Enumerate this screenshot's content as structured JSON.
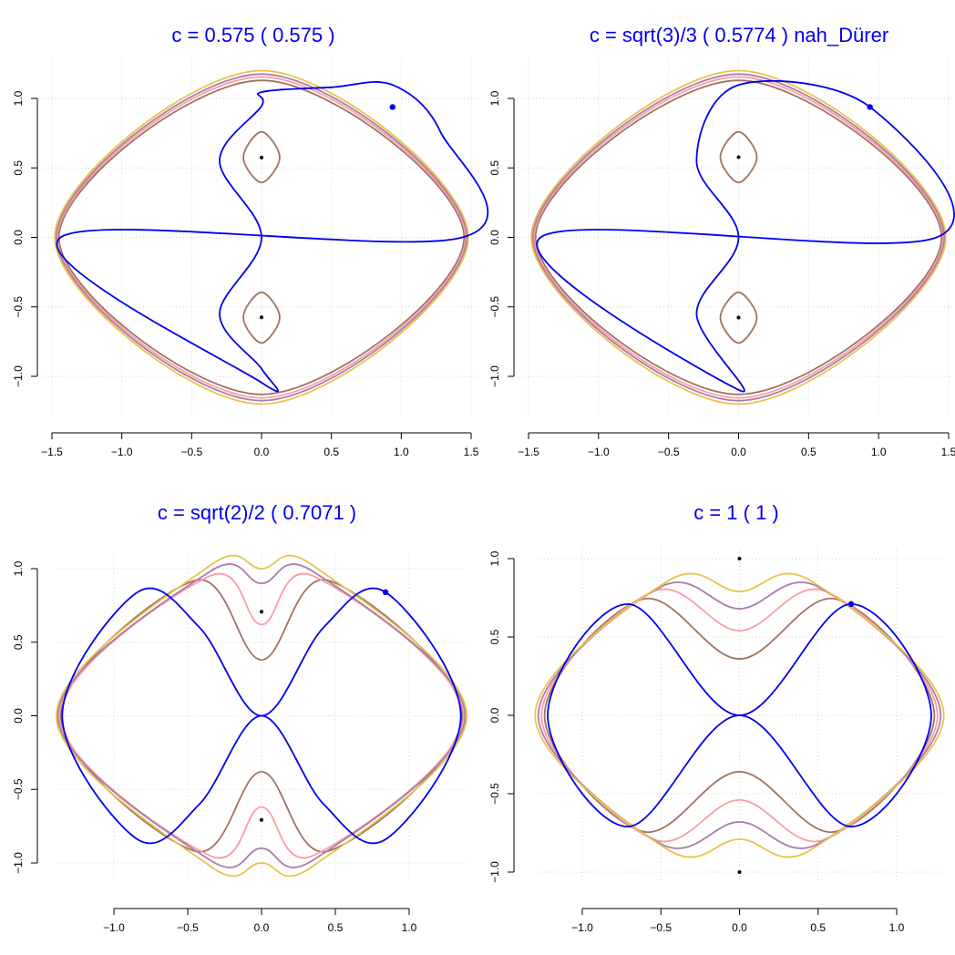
{
  "chart_data": [
    {
      "type": "line",
      "title": "c = 0.575  ( 0.575 )",
      "c": 0.575,
      "xlim": [
        -1.5,
        1.5
      ],
      "ylim": [
        -1.2,
        1.2
      ],
      "xticks": [
        "−1.5",
        "−1.0",
        "−0.5",
        "0.0",
        "0.5",
        "1.0",
        "1.5"
      ],
      "yticks": [
        "−1.0",
        "−0.5",
        "0.0",
        "0.5",
        "1.0"
      ],
      "grid": true,
      "series": [
        {
          "values": [
            [
              1.438,
              0.0
            ],
            [
              1.28,
              0.76
            ],
            [
              0.938,
              1.097
            ],
            [
              0.5,
              1.08
            ],
            [
              0.0,
              1.045
            ],
            [
              0.0,
              0.945
            ],
            [
              -0.3,
              0.55
            ],
            [
              0.0,
              0.0
            ],
            [
              -0.3,
              -0.55
            ],
            [
              0.0,
              -0.945
            ],
            [
              0.0,
              -1.045
            ],
            [
              -1.438,
              0.0
            ]
          ]
        },
        {
          "values": [
            [
              0.0,
              0.76
            ],
            [
              0.13,
              0.575
            ],
            [
              0.0,
              0.395
            ],
            [
              -0.13,
              0.575
            ]
          ]
        },
        {
          "values": [
            [
              0.0,
              -0.395
            ],
            [
              0.13,
              -0.575
            ],
            [
              0.0,
              -0.76
            ],
            [
              -0.13,
              -0.575
            ]
          ]
        },
        {
          "values": [
            [
              1.45,
              0.0
            ],
            [
              0.0,
              1.13
            ],
            [
              -1.45,
              0.0
            ],
            [
              0.0,
              -1.13
            ]
          ]
        },
        {
          "values": [
            [
              1.46,
              0.0
            ],
            [
              0.0,
              1.155
            ],
            [
              -1.46,
              0.0
            ],
            [
              0.0,
              -1.155
            ]
          ]
        },
        {
          "values": [
            [
              1.47,
              0.0
            ],
            [
              0.0,
              1.175
            ],
            [
              -1.47,
              0.0
            ],
            [
              0.0,
              -1.175
            ]
          ]
        },
        {
          "values": [
            [
              1.48,
              0.0
            ],
            [
              0.0,
              1.2
            ],
            [
              -1.48,
              0.0
            ],
            [
              0.0,
              -1.2
            ]
          ]
        }
      ],
      "points": [
        [
          0.0,
          0.575
        ],
        [
          0.0,
          -0.575
        ],
        [
          0.938,
          0.938
        ]
      ]
    },
    {
      "type": "line",
      "title": "c = sqrt(3)/3  ( 0.5774 )  nah_Dürer",
      "c": 0.5774,
      "xlim": [
        -1.5,
        1.5
      ],
      "ylim": [
        -1.2,
        1.2
      ],
      "xticks": [
        "−1.5",
        "−1.0",
        "−0.5",
        "0.0",
        "0.5",
        "1.0",
        "1.5"
      ],
      "yticks": [
        "−1.0",
        "−0.5",
        "0.0",
        "0.5",
        "1.0"
      ],
      "grid": true,
      "series": [
        {
          "values": [
            [
              1.414,
              0.0
            ],
            [
              0.938,
              0.938
            ],
            [
              0.0,
              1.097
            ],
            [
              -0.3,
              0.55
            ],
            [
              0.0,
              0.0
            ],
            [
              -0.3,
              -0.55
            ],
            [
              0.0,
              -1.097
            ],
            [
              -1.414,
              0.0
            ]
          ]
        },
        {
          "values": [
            [
              0.0,
              0.76
            ],
            [
              0.13,
              0.577
            ],
            [
              0.0,
              0.395
            ],
            [
              -0.13,
              0.577
            ]
          ]
        },
        {
          "values": [
            [
              0.0,
              -0.395
            ],
            [
              0.13,
              -0.577
            ],
            [
              0.0,
              -0.76
            ],
            [
              -0.13,
              -0.577
            ]
          ]
        },
        {
          "values": [
            [
              1.45,
              0.0
            ],
            [
              0.0,
              1.13
            ],
            [
              -1.45,
              0.0
            ],
            [
              0.0,
              -1.13
            ]
          ]
        },
        {
          "values": [
            [
              1.46,
              0.0
            ],
            [
              0.0,
              1.155
            ],
            [
              -1.46,
              0.0
            ],
            [
              0.0,
              -1.155
            ]
          ]
        },
        {
          "values": [
            [
              1.47,
              0.0
            ],
            [
              0.0,
              1.175
            ],
            [
              -1.47,
              0.0
            ],
            [
              0.0,
              -1.175
            ]
          ]
        },
        {
          "values": [
            [
              1.48,
              0.0
            ],
            [
              0.0,
              1.2
            ],
            [
              -1.48,
              0.0
            ],
            [
              0.0,
              -1.2
            ]
          ]
        }
      ],
      "points": [
        [
          0.0,
          0.577
        ],
        [
          0.0,
          -0.577
        ],
        [
          0.938,
          0.938
        ]
      ]
    },
    {
      "type": "line",
      "title": "c = sqrt(2)/2  ( 0.7071 )",
      "c": 0.7071,
      "xlim": [
        -1.3,
        1.3
      ],
      "ylim": [
        -1.02,
        1.02
      ],
      "xticks": [
        "−1.0",
        "−0.5",
        "0.0",
        "0.5",
        "1.0"
      ],
      "yticks": [
        "−1.0",
        "−0.5",
        "0.0",
        "0.5",
        "1.0"
      ],
      "grid": true,
      "series": [
        {
          "values": [
            [
              1.35,
              0.0
            ],
            [
              0.84,
              0.84
            ],
            [
              0.42,
              0.6
            ],
            [
              0.0,
              0.0
            ],
            [
              -0.42,
              0.6
            ],
            [
              -0.84,
              0.84
            ],
            [
              -1.35,
              0.0
            ],
            [
              -0.84,
              -0.84
            ],
            [
              -0.42,
              -0.6
            ],
            [
              0.0,
              0.0
            ],
            [
              0.42,
              -0.6
            ],
            [
              0.84,
              -0.84
            ]
          ]
        },
        {
          "values": [
            [
              1.36,
              0.0
            ],
            [
              0.45,
              0.92
            ],
            [
              0.0,
              0.38
            ],
            [
              -0.45,
              0.92
            ],
            [
              -1.36,
              0.0
            ],
            [
              -0.45,
              -0.92
            ],
            [
              0.0,
              -0.38
            ],
            [
              0.45,
              -0.92
            ]
          ]
        },
        {
          "values": [
            [
              1.37,
              0.0
            ],
            [
              0.35,
              0.95
            ],
            [
              0.0,
              0.62
            ],
            [
              -0.35,
              0.95
            ],
            [
              -1.37,
              0.0
            ],
            [
              -0.35,
              -0.95
            ],
            [
              0.0,
              -0.62
            ],
            [
              0.35,
              -0.95
            ]
          ]
        },
        {
          "values": [
            [
              1.38,
              0.0
            ],
            [
              0.35,
              0.98
            ],
            [
              0.0,
              0.9
            ],
            [
              -0.35,
              0.98
            ],
            [
              -1.38,
              0.0
            ],
            [
              -0.35,
              -0.98
            ],
            [
              0.0,
              -0.9
            ],
            [
              0.35,
              -0.98
            ]
          ]
        },
        {
          "values": [
            [
              1.39,
              0.0
            ],
            [
              0.35,
              1.02
            ],
            [
              0.0,
              1.0
            ],
            [
              -0.35,
              1.02
            ],
            [
              -1.39,
              0.0
            ],
            [
              -0.35,
              -1.02
            ],
            [
              0.0,
              -1.0
            ],
            [
              0.35,
              -1.02
            ]
          ]
        }
      ],
      "points": [
        [
          0.0,
          0.7071
        ],
        [
          0.0,
          -0.7071
        ],
        [
          0.84,
          0.84
        ]
      ]
    },
    {
      "type": "line",
      "title": "c = 1  ( 1 )",
      "c": 1,
      "xlim": [
        -1.22,
        1.22
      ],
      "ylim": [
        -1.0,
        1.0
      ],
      "xticks": [
        "−1.0",
        "−0.5",
        "0.0",
        "0.5",
        "1.0"
      ],
      "yticks": [
        "−1.0",
        "−0.5",
        "0.0",
        "0.5",
        "1.0"
      ],
      "grid": true,
      "series": [
        {
          "values": [
            [
              1.22,
              0.0
            ],
            [
              0.71,
              0.71
            ],
            [
              0.0,
              0.0
            ],
            [
              -0.71,
              0.71
            ],
            [
              -1.22,
              0.0
            ],
            [
              -0.71,
              -0.71
            ],
            [
              0.0,
              0.0
            ],
            [
              0.71,
              -0.71
            ]
          ]
        },
        {
          "values": [
            [
              1.24,
              0.0
            ],
            [
              0.62,
              0.74
            ],
            [
              0.0,
              0.36
            ],
            [
              -0.62,
              0.74
            ],
            [
              -1.24,
              0.0
            ],
            [
              -0.62,
              -0.74
            ],
            [
              0.0,
              -0.36
            ],
            [
              0.62,
              -0.74
            ]
          ]
        },
        {
          "values": [
            [
              1.26,
              0.0
            ],
            [
              0.55,
              0.79
            ],
            [
              0.0,
              0.54
            ],
            [
              -0.55,
              0.79
            ],
            [
              -1.26,
              0.0
            ],
            [
              -0.55,
              -0.79
            ],
            [
              0.0,
              -0.54
            ],
            [
              0.55,
              -0.79
            ]
          ]
        },
        {
          "values": [
            [
              1.28,
              0.0
            ],
            [
              0.5,
              0.82
            ],
            [
              0.0,
              0.68
            ],
            [
              -0.5,
              0.82
            ],
            [
              -1.28,
              0.0
            ],
            [
              -0.5,
              -0.82
            ],
            [
              0.0,
              -0.68
            ],
            [
              0.5,
              -0.82
            ]
          ]
        },
        {
          "values": [
            [
              1.3,
              0.0
            ],
            [
              0.45,
              0.86
            ],
            [
              0.0,
              0.79
            ],
            [
              -0.45,
              0.86
            ],
            [
              -1.3,
              0.0
            ],
            [
              -0.45,
              -0.86
            ],
            [
              0.0,
              -0.79
            ],
            [
              0.45,
              -0.86
            ]
          ]
        }
      ],
      "points": [
        [
          0.0,
          1.0
        ],
        [
          0.0,
          -1.0
        ],
        [
          0.71,
          0.71
        ]
      ]
    }
  ],
  "colors": {
    "title": "#0000ee",
    "separatrix": "#0000ee",
    "levels": [
      "#9e7461",
      "#ff9aa2",
      "#a77fa8",
      "#e8c34a"
    ],
    "grid": "#d3d3d3",
    "point": "#000000"
  }
}
